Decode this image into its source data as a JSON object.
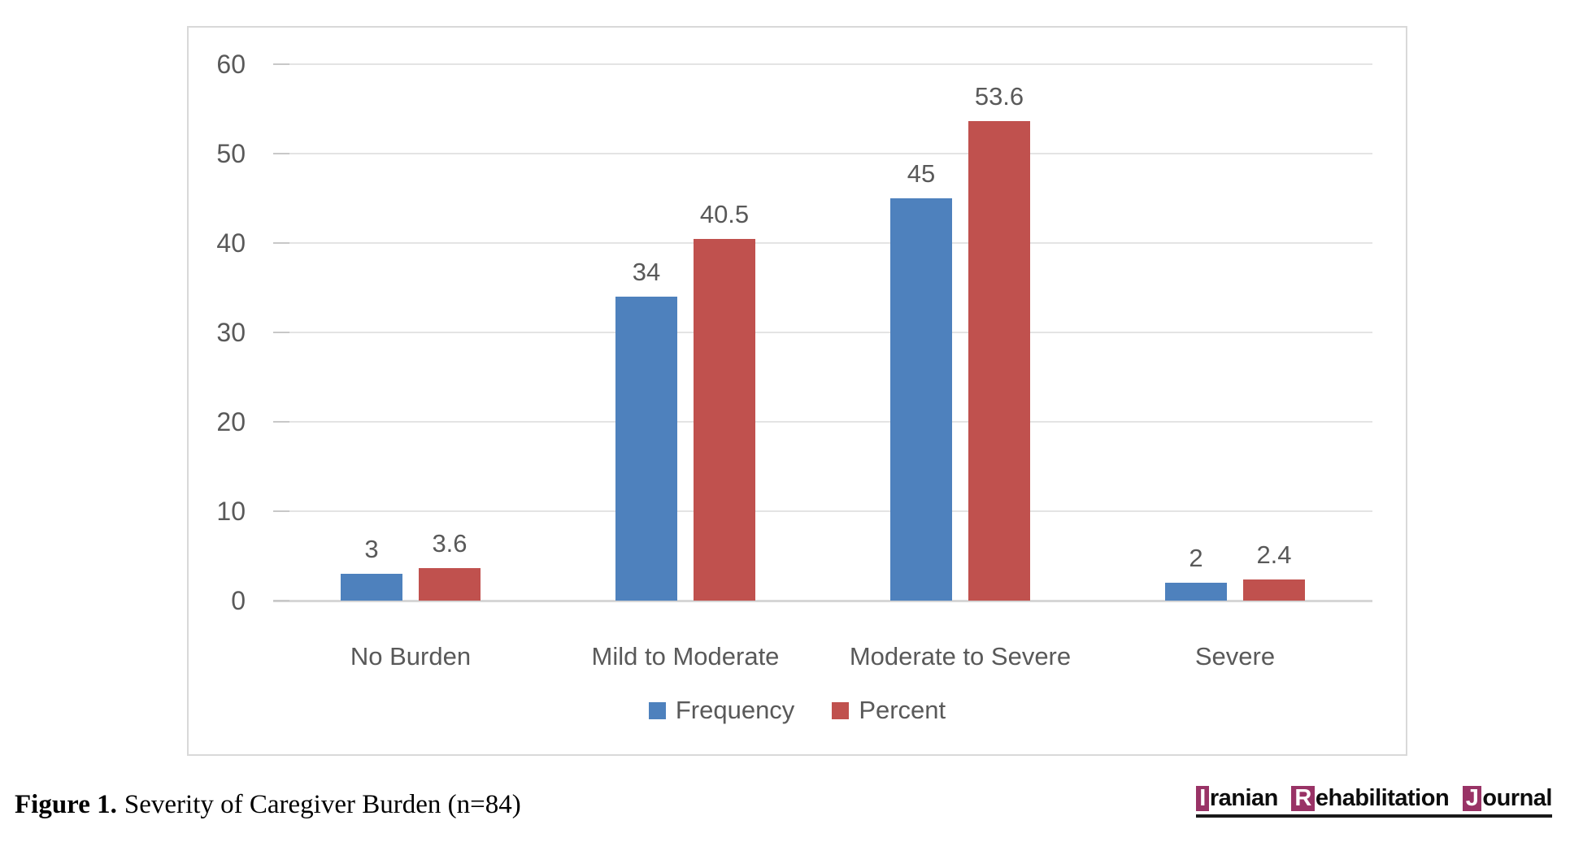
{
  "figure": {
    "caption_label": "Figure 1.",
    "caption_text": "Severity of Caregiver Burden (n=84)"
  },
  "logo": {
    "name": "Iranian Rehabilitation Journal",
    "segments": [
      {
        "boxed": "I",
        "rest": "ranian"
      },
      {
        "boxed": "R",
        "rest": "ehabilitation"
      },
      {
        "boxed": "J",
        "rest": "ournal"
      }
    ],
    "box_color": "#993366"
  },
  "chart_data": {
    "type": "bar",
    "title": "",
    "xlabel": "",
    "ylabel": "",
    "categories": [
      "No Burden",
      "Mild to Moderate",
      "Moderate to Severe",
      "Severe"
    ],
    "series": [
      {
        "name": "Frequency",
        "color": "#4E81BD",
        "values": [
          3,
          34,
          45,
          2
        ]
      },
      {
        "name": "Percent",
        "color": "#C0514E",
        "values": [
          3.6,
          40.5,
          53.6,
          2.4
        ]
      }
    ],
    "ylim": [
      0,
      60
    ],
    "yticks": [
      0,
      10,
      20,
      30,
      40,
      50,
      60
    ],
    "grid": true,
    "gridlines": "horizontal",
    "legend_position": "bottom",
    "data_labels": true
  },
  "colors": {
    "axis_text": "#595959",
    "gridline": "#E4E4E4",
    "axis_line": "#D6D6D6",
    "tick_mark": "#C8C8C8",
    "chart_border": "#D9D9D9",
    "frequency_blue": "#4E81BD",
    "percent_red": "#C0514E",
    "logo_box": "#993366"
  }
}
